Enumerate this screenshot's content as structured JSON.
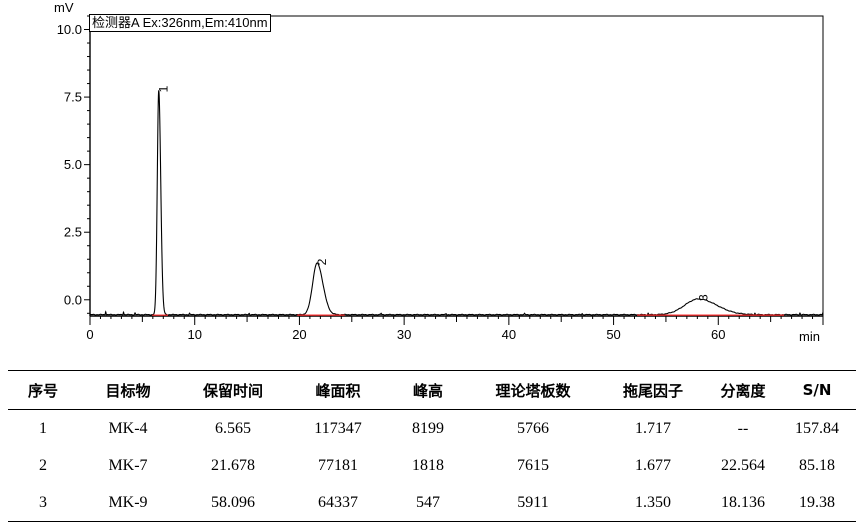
{
  "chart_data": {
    "type": "line",
    "detector_label": "检测器A Ex:326nm,Em:410nm",
    "ylabel": "mV",
    "xlabel": "min",
    "xlim": [
      0,
      70
    ],
    "ylim": [
      -0.6,
      10.5
    ],
    "x_ticks": [
      0,
      10,
      20,
      30,
      40,
      50,
      60
    ],
    "y_ticks": [
      "10.0",
      "7.5",
      "5.0",
      "2.5",
      "0.0"
    ],
    "grid": false,
    "baseline_mV": -0.55,
    "peaks": [
      {
        "label": "1",
        "rt": 6.565,
        "height_mV": 8.3,
        "width_min": 0.14
      },
      {
        "label": "2",
        "rt": 21.678,
        "height_mV": 1.9,
        "width_min": 0.42
      },
      {
        "label": "3",
        "rt": 58.096,
        "height_mV": 0.58,
        "width_min": 1.3
      }
    ],
    "series": [
      {
        "color": "#000000"
      }
    ]
  },
  "table": {
    "headers": [
      "序号",
      "目标物",
      "保留时间",
      "峰面积",
      "峰高",
      "理论塔板数",
      "拖尾因子",
      "分离度",
      "S/N"
    ],
    "rows": [
      [
        "1",
        "MK-4",
        "6.565",
        "117347",
        "8199",
        "5766",
        "1.717",
        "--",
        "157.84"
      ],
      [
        "2",
        "MK-7",
        "21.678",
        "77181",
        "1818",
        "7615",
        "1.677",
        "22.564",
        "85.18"
      ],
      [
        "3",
        "MK-9",
        "58.096",
        "64337",
        "547",
        "5911",
        "1.350",
        "18.136",
        "19.38"
      ]
    ]
  },
  "colors": {
    "trace": "#000000",
    "baseline": "#ff3030",
    "axis": "#000000"
  }
}
